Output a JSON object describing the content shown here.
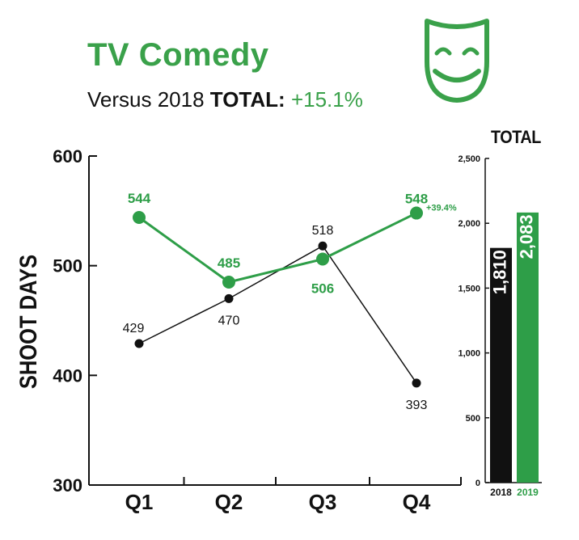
{
  "title": "TV Comedy",
  "subtitle": {
    "prefix": "Versus 2018",
    "total_label": "TOTAL:",
    "change": "+15.1%"
  },
  "icon": "comedy-mask-icon",
  "colors": {
    "accent": "#3aa14a",
    "series_2019": "#2e9e48",
    "series_2018": "#111111"
  },
  "chart_data": [
    {
      "type": "line",
      "categories": [
        "Q1",
        "Q2",
        "Q3",
        "Q4"
      ],
      "ylabel": "SHOOT DAYS",
      "ylim": [
        300,
        600
      ],
      "yticks": [
        300,
        400,
        500,
        600
      ],
      "series": [
        {
          "name": "2019",
          "values": [
            544,
            485,
            506,
            548
          ],
          "color": "#2e9e48",
          "labels": [
            "544",
            "485",
            "506",
            "548"
          ]
        },
        {
          "name": "2018",
          "values": [
            429,
            470,
            518,
            393
          ],
          "color": "#111111",
          "labels": [
            "429",
            "470",
            "518",
            "393"
          ]
        }
      ],
      "annotations": [
        {
          "category": "Q4",
          "series": "2019",
          "text": "+39.4%"
        }
      ]
    },
    {
      "type": "bar",
      "title": "TOTAL",
      "categories": [
        "2018",
        "2019"
      ],
      "values": [
        1810,
        2083
      ],
      "value_labels": [
        "1,810",
        "2,083"
      ],
      "colors": [
        "#111111",
        "#2e9e48"
      ],
      "ylim": [
        0,
        2500
      ],
      "yticks": [
        0,
        500,
        1000,
        1500,
        2000,
        2500
      ],
      "ytick_labels": [
        "0",
        "500",
        "1,000",
        "1,500",
        "2,000",
        "2,500"
      ]
    }
  ]
}
